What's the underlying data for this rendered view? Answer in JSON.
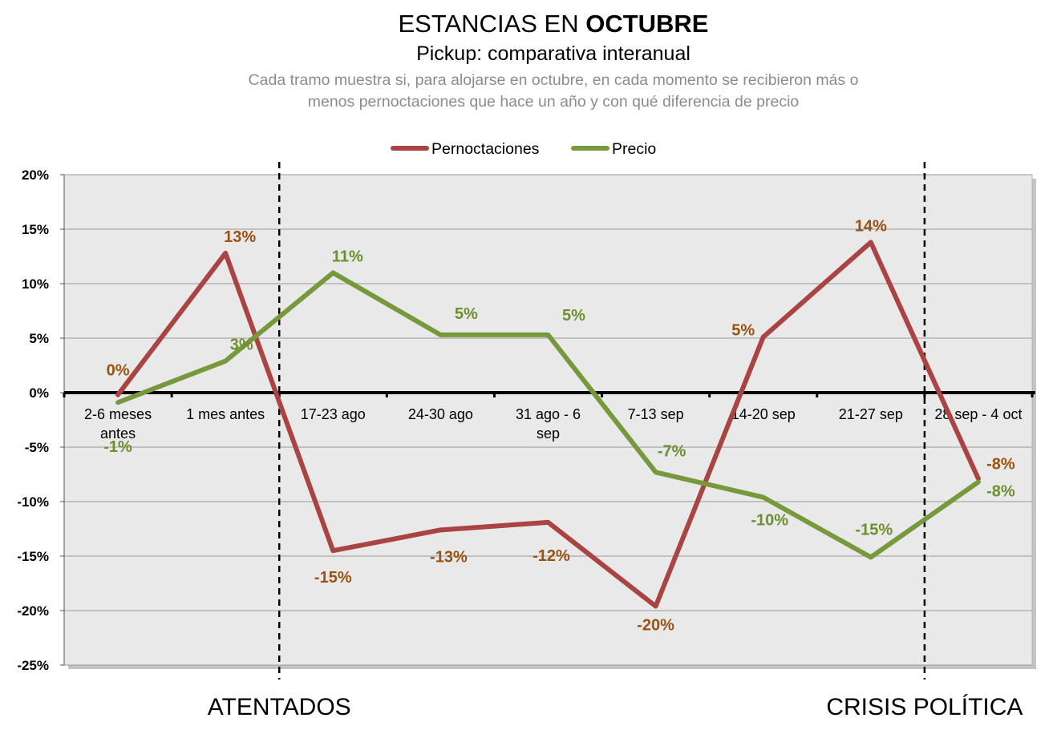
{
  "title": {
    "prefix": "ESTANCIAS EN ",
    "bold": "OCTUBRE"
  },
  "subtitle": "Pickup: comparativa interanual",
  "description": [
    "Cada tramo muestra si, para alojarse en octubre, en cada momento se recibieron más o",
    "menos pernoctaciones que hace un año y con qué diferencia de precio"
  ],
  "colors": {
    "pernoctaciones": "#a94442",
    "precio": "#78993b",
    "label_pernoctaciones": "#9a5213",
    "label_precio": "#6e8f2f",
    "plot_bg": "#e9e9e9",
    "grid": "#9a9a9a"
  },
  "events": [
    {
      "label": "ATENTADOS",
      "after_index": 1
    },
    {
      "label": "CRISIS POLÍTICA",
      "after_index": 7
    }
  ],
  "chart_data": {
    "type": "line",
    "categories": [
      [
        "2-6 meses",
        "antes"
      ],
      [
        "1 mes antes"
      ],
      [
        "17-23 ago"
      ],
      [
        "24-30 ago"
      ],
      [
        "31 ago - 6",
        "sep"
      ],
      [
        "7-13 sep"
      ],
      [
        "14-20 sep"
      ],
      [
        "21-27 sep"
      ],
      [
        "28 sep - 4 oct"
      ]
    ],
    "series": [
      {
        "name": "Pernoctaciones",
        "values": [
          -0.2,
          12.8,
          -14.5,
          -12.6,
          -11.9,
          -19.6,
          5.1,
          13.8,
          -7.9
        ],
        "labels": [
          "0%",
          "13%",
          "-15%",
          "-13%",
          "-12%",
          "-20%",
          "5%",
          "14%",
          "-8%"
        ]
      },
      {
        "name": "Precio",
        "values": [
          -0.9,
          2.9,
          11.0,
          5.3,
          5.3,
          -7.3,
          -9.6,
          -15.1,
          -8.2
        ],
        "labels": [
          "-1%",
          "3%",
          "11%",
          "5%",
          "5%",
          "-7%",
          "-10%",
          "-15%",
          "-8%"
        ]
      }
    ],
    "y_ticks": [
      "20%",
      "15%",
      "10%",
      "5%",
      "0%",
      "-5%",
      "-10%",
      "-15%",
      "-20%",
      "-25%"
    ],
    "ylim": [
      -25,
      20
    ],
    "grid": true,
    "legend_position": "top-center"
  }
}
